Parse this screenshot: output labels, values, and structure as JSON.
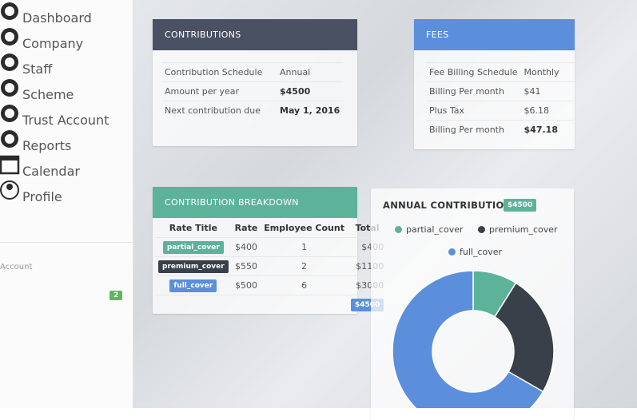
{
  "sidebar": {
    "nav": [
      "Dashboard",
      "Company",
      "Staff",
      "Scheme",
      "Trust Account",
      "Reports"
    ],
    "section": "Account",
    "account_nav": [
      "Calendar",
      "Profile"
    ],
    "calendar_badge": "2"
  },
  "contributions": {
    "title": "CONTRIBUTIONS",
    "rows": [
      [
        "Contribution Schedule",
        "Annual"
      ],
      [
        "Amount per year",
        "$4500"
      ],
      [
        "Next contribution due",
        "May 1, 2016"
      ]
    ]
  },
  "fees": {
    "title": "FEES",
    "rows": [
      [
        "Fee Billing Schedule",
        "Monthly"
      ],
      [
        "Billing Per month",
        "$41"
      ],
      [
        "Plus Tax",
        "$6.18"
      ],
      [
        "Billing Per month",
        "$47.18"
      ]
    ]
  },
  "breakdown": {
    "title": "CONTRIBUTION BREAKDOWN",
    "columns": [
      "Rate Title",
      "Rate",
      "Employee Count",
      "Total"
    ],
    "rows": [
      [
        "partial_cover",
        "$400",
        "1",
        "$400"
      ],
      [
        "premium_cover",
        "$550",
        "2",
        "$1100"
      ],
      [
        "full_cover",
        "$500",
        "6",
        "$3000"
      ]
    ],
    "total": "$4500"
  },
  "chart_data": {
    "type": "donut",
    "title": "ANNUAL CONTRIBUTIONS",
    "total_label": "$4500",
    "categories": [
      "partial_cover",
      "premium_cover",
      "full_cover"
    ],
    "values": [
      400,
      1100,
      3000
    ],
    "colors": [
      "#5cb39a",
      "#3a4049",
      "#5b8fdc"
    ]
  }
}
